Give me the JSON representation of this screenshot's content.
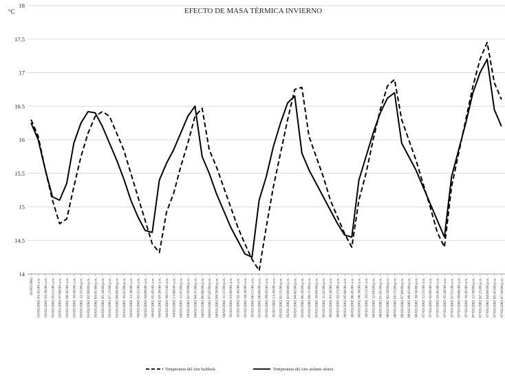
{
  "chart_data": {
    "type": "line",
    "title": "EFECTO DE MASA TÉRMICA INVIERNO",
    "ylabel": "°C",
    "xlabel": "",
    "ylim": [
      14,
      18
    ],
    "yticks": [
      "14",
      "14.5",
      "15",
      "15.5",
      "16",
      "16.5",
      "17",
      "17.5",
      "18"
    ],
    "grid": true,
    "legend_position": "bottom",
    "categories": [
      "03/03/2002",
      "03/03/2002 01:45:00 a.m.",
      "03/03/2002 03:30:00 a.m.",
      "03/03/2002 05:15:00 a.m.",
      "03/03/2002 07:00:00 a.m.",
      "03/03/2002 08:45:00 a.m.",
      "03/03/2002 10:30:00 a.m.",
      "03/03/2002 12:15:00 p.m.",
      "03/03/2002 02:00:00 p.m.",
      "03/03/2002 03:45:00 p.m.",
      "03/03/2002 05:30:00 p.m.",
      "03/03/2002 07:15:00 p.m.",
      "03/03/2002 09:00:00 p.m.",
      "03/03/2002 10:45:00 p.m.",
      "04/03/2002 12:30:00 a.m.",
      "04/03/2002 02:15:00 a.m.",
      "04/03/2002 04:00:00 a.m.",
      "04/03/2002 05:45:00 a.m.",
      "04/03/2002 07:30:00 a.m.",
      "04/03/2002 09:15:00 a.m.",
      "04/03/2002 11:00:00 a.m.",
      "04/03/2002 12:45:00 p.m.",
      "04/03/2002 02:30:00 p.m.",
      "04/03/2002 04:15:00 p.m.",
      "04/03/2002 06:00:00 p.m.",
      "04/03/2002 07:45:00 p.m.",
      "04/03/2002 09:30:00 p.m.",
      "04/03/2002 11:15:00 p.m.",
      "05/03/2002 01:00:00 a.m.",
      "05/03/2002 02:45:00 a.m.",
      "05/03/2002 04:30:00 a.m.",
      "05/03/2002 06:15:00 a.m.",
      "05/03/2002 08:00:00 a.m.",
      "05/03/2002 09:45:00 a.m.",
      "05/03/2002 11:30:00 a.m.",
      "05/03/2002 01:15:00 p.m.",
      "05/03/2002 03:00:00 p.m.",
      "05/03/2002 04:45:00 p.m.",
      "05/03/2002 06:30:00 p.m.",
      "05/03/2002 08:15:00 p.m.",
      "05/03/2002 10:00:00 p.m.",
      "05/03/2002 11:45:00 p.m.",
      "06/03/2002 01:30:00 a.m.",
      "06/03/2002 03:15:00 a.m.",
      "06/03/2002 05:00:00 a.m.",
      "06/03/2002 06:45:00 a.m.",
      "06/03/2002 08:30:00 a.m.",
      "06/03/2002 10:15:00 a.m.",
      "06/03/2002 12:00:00 p.m.",
      "06/03/2002 01:45:00 p.m.",
      "06/03/2002 03:30:00 p.m.",
      "06/03/2002 05:15:00 p.m.",
      "06/03/2002 07:00:00 p.m.",
      "06/03/2002 08:45:00 p.m.",
      "06/03/2002 10:30:00 p.m.",
      "07/03/2002 12:15:00 a.m.",
      "07/03/2002 02:00:00 a.m.",
      "07/03/2002 03:45:00 a.m.",
      "07/03/2002 05:30:00 a.m.",
      "07/03/2002 07:15:00 a.m.",
      "07/03/2002 09:00:00 a.m.",
      "07/03/2002 10:45:00 a.m.",
      "07/03/2002 12:30:00 p.m.",
      "07/03/2002 02:15:00 p.m.",
      "07/03/2002 04:00:00 p.m.",
      "07/03/2002 05:45:00 p.m.",
      "07/03/2002 07:30:00 p.m."
    ],
    "series": [
      {
        "name": "Temperatura del Aire Isoblock",
        "style": "dashed",
        "color": "#000000",
        "values": [
          16.3,
          16.05,
          15.55,
          15.1,
          14.75,
          14.82,
          15.3,
          15.75,
          16.1,
          16.35,
          16.42,
          16.35,
          16.1,
          15.85,
          15.5,
          15.15,
          14.8,
          14.45,
          14.32,
          14.92,
          15.2,
          15.6,
          15.95,
          16.35,
          16.47,
          15.85,
          15.6,
          15.3,
          15.0,
          14.7,
          14.45,
          14.22,
          14.05,
          14.7,
          15.3,
          15.8,
          16.3,
          16.75,
          16.78,
          16.05,
          15.75,
          15.45,
          15.1,
          14.85,
          14.6,
          14.4,
          15.1,
          15.5,
          16.0,
          16.45,
          16.8,
          16.9,
          16.3,
          16.0,
          15.7,
          15.35,
          15.0,
          14.62,
          14.4,
          15.3,
          15.8,
          16.3,
          16.8,
          17.2,
          17.45,
          16.85,
          16.6
        ]
      },
      {
        "name": "Temperatura del Aire aislante afuera",
        "style": "solid",
        "color": "#000000",
        "values": [
          16.25,
          16.0,
          15.55,
          15.15,
          15.1,
          15.35,
          15.95,
          16.25,
          16.42,
          16.4,
          16.2,
          15.95,
          15.7,
          15.42,
          15.1,
          14.85,
          14.65,
          14.62,
          15.4,
          15.65,
          15.85,
          16.1,
          16.35,
          16.5,
          15.75,
          15.5,
          15.2,
          14.95,
          14.7,
          14.5,
          14.3,
          14.25,
          15.1,
          15.45,
          15.9,
          16.25,
          16.55,
          16.65,
          15.8,
          15.55,
          15.35,
          15.15,
          14.95,
          14.75,
          14.58,
          14.55,
          15.4,
          15.75,
          16.1,
          16.4,
          16.62,
          16.7,
          15.95,
          15.75,
          15.55,
          15.3,
          15.05,
          14.8,
          14.55,
          15.45,
          15.85,
          16.25,
          16.7,
          17.0,
          17.2,
          16.45,
          16.2
        ]
      }
    ]
  }
}
